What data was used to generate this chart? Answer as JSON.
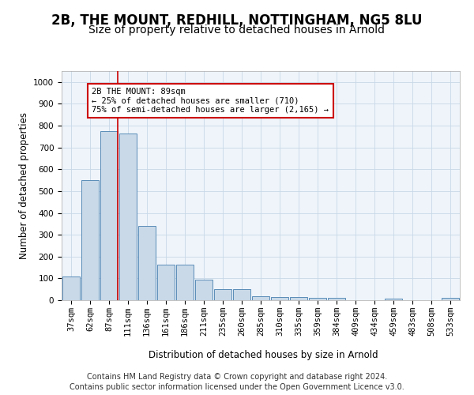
{
  "title_line1": "2B, THE MOUNT, REDHILL, NOTTINGHAM, NG5 8LU",
  "title_line2": "Size of property relative to detached houses in Arnold",
  "xlabel": "Distribution of detached houses by size in Arnold",
  "ylabel": "Number of detached properties",
  "footer_line1": "Contains HM Land Registry data © Crown copyright and database right 2024.",
  "footer_line2": "Contains public sector information licensed under the Open Government Licence v3.0.",
  "categories": [
    "37sqm",
    "62sqm",
    "87sqm",
    "111sqm",
    "136sqm",
    "161sqm",
    "186sqm",
    "211sqm",
    "235sqm",
    "260sqm",
    "285sqm",
    "310sqm",
    "335sqm",
    "359sqm",
    "384sqm",
    "409sqm",
    "434sqm",
    "459sqm",
    "483sqm",
    "508sqm",
    "533sqm"
  ],
  "values": [
    110,
    550,
    775,
    765,
    340,
    163,
    163,
    95,
    50,
    50,
    18,
    13,
    13,
    10,
    10,
    0,
    0,
    8,
    0,
    0,
    10
  ],
  "bar_color": "#c9d9e8",
  "bar_edge_color": "#5b8db8",
  "annotation_text": "2B THE MOUNT: 89sqm\n← 25% of detached houses are smaller (710)\n75% of semi-detached houses are larger (2,165) →",
  "annotation_box_color": "#ffffff",
  "annotation_box_edge": "#cc0000",
  "vline_x_index": 2,
  "vline_color": "#cc0000",
  "ylim": [
    0,
    1050
  ],
  "yticks": [
    0,
    100,
    200,
    300,
    400,
    500,
    600,
    700,
    800,
    900,
    1000
  ],
  "grid_color": "#c8d8e8",
  "background_color": "#eef4fa",
  "fig_background": "#ffffff",
  "title1_fontsize": 12,
  "title2_fontsize": 10,
  "axis_fontsize": 8.5,
  "tick_fontsize": 7.5,
  "footer_fontsize": 7
}
